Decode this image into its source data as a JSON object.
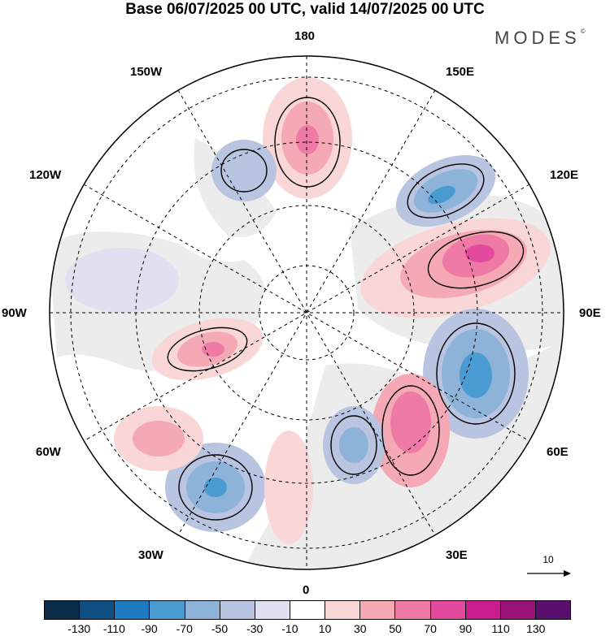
{
  "title": "Base 06/07/2025 00 UTC, valid 14/07/2025 00 UTC",
  "brand": "MODES",
  "brand_mark": "©",
  "lon_labels": {
    "top": "180",
    "bottom": "0",
    "left": "90W",
    "right": "90E",
    "nw1": "150W",
    "nw2": "120W",
    "ne1": "150E",
    "ne2": "120E",
    "sw1": "60W",
    "sw2": "30W",
    "se1": "60E",
    "se2": "30E"
  },
  "reference_vector": {
    "label": "10",
    "icon": "arrow-right-icon"
  },
  "colorbar": {
    "colors": [
      "#0c2d48",
      "#0f4f82",
      "#1f7bbf",
      "#4a9bd1",
      "#8db3d9",
      "#b8c4e0",
      "#e0e0f0",
      "#ffffff",
      "#f9d7d7",
      "#f4a9b5",
      "#ee7aa5",
      "#e34a9e",
      "#c81d8f",
      "#99127a",
      "#5a0f6e"
    ],
    "ticks": [
      "-130",
      "-110",
      "-90",
      "-70",
      "-50",
      "-30",
      "-10",
      "10",
      "30",
      "50",
      "70",
      "90",
      "110",
      "130"
    ]
  }
}
